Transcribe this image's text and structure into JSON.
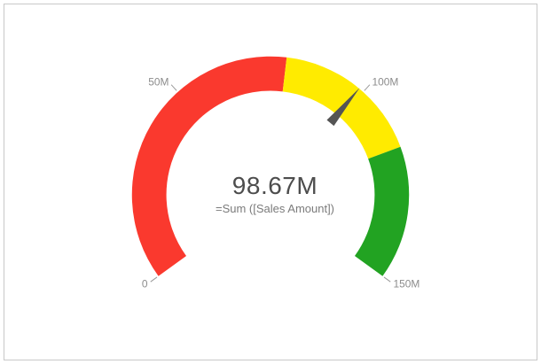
{
  "window": {
    "background_color": "#ffffff",
    "border_color": "#c8c8c8"
  },
  "chart_data": {
    "type": "gauge",
    "title": "",
    "value": 98.67,
    "value_display": "98.67M",
    "measure_expression": "=Sum ([Sales Amount])",
    "min": 0,
    "max": 150,
    "unit": "M",
    "start_angle_deg": 216,
    "end_angle_deg": -36,
    "axis_ticks": [
      {
        "value": 0,
        "label": "0"
      },
      {
        "value": 50,
        "label": "50M"
      },
      {
        "value": 100,
        "label": "100M"
      },
      {
        "value": 150,
        "label": "150M"
      }
    ],
    "segments": [
      {
        "name": "red",
        "from": 0,
        "to": 79,
        "color": "#fa392e"
      },
      {
        "name": "yellow",
        "from": 79,
        "to": 116.5,
        "color": "#ffeb00"
      },
      {
        "name": "green",
        "from": 116.5,
        "to": 150,
        "color": "#22a322"
      }
    ],
    "needle_color": "#545454",
    "tick_color": "#999999",
    "label_color": "#8c8c8c",
    "value_color": "#4d4d4d"
  }
}
